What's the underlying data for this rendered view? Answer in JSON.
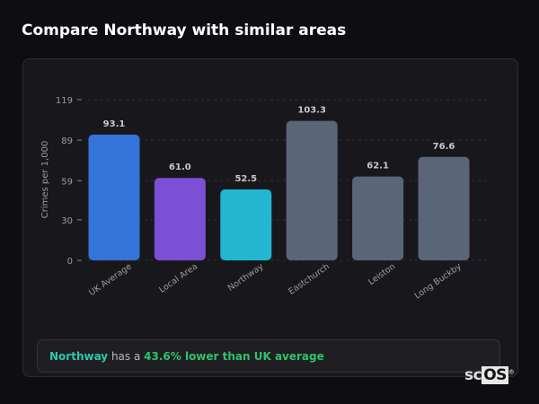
{
  "title": "Compare Northway with similar areas",
  "chart_data": {
    "type": "bar",
    "categories": [
      "UK Average",
      "Local Area",
      "Northway",
      "Eastchurch",
      "Leiston",
      "Long Buckby"
    ],
    "values": [
      93.1,
      61.0,
      52.5,
      103.3,
      62.1,
      76.6
    ],
    "colors": [
      "#3474d8",
      "#7b4fd6",
      "#22b6cf",
      "#5a6577",
      "#5a6577",
      "#5a6577"
    ],
    "ylabel": "Crimes per 1,000",
    "xlabel": "",
    "yticks": [
      0,
      30,
      59,
      89,
      119
    ],
    "ylim": [
      0,
      119
    ],
    "grid": true
  },
  "summary": {
    "area": "Northway",
    "middle": " has a ",
    "comparison": "43.6% lower than UK average"
  },
  "logo": {
    "text_sc": "sc",
    "text_os": "OS",
    "mark": "®"
  }
}
